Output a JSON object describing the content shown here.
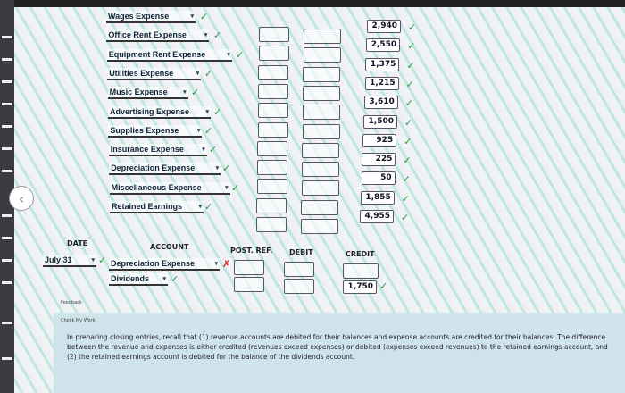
{
  "closing_entries": [
    {
      "account": "Wages Expense",
      "credit": "2,940"
    },
    {
      "account": "Office Rent Expense",
      "credit": "2,550"
    },
    {
      "account": "Equipment Rent Expense",
      "credit": "1,375"
    },
    {
      "account": "Utilities Expense",
      "credit": "1,215"
    },
    {
      "account": "Music Expense",
      "credit": "3,610"
    },
    {
      "account": "Advertising Expense",
      "credit": "1,500"
    },
    {
      "account": "Supplies Expense",
      "credit": "925"
    },
    {
      "account": "Insurance Expense",
      "credit": "225"
    },
    {
      "account": "Depreciation Expense",
      "credit": "50"
    },
    {
      "account": "Miscellaneous Expense",
      "credit": "1,855"
    },
    {
      "account": "Retained Earnings",
      "credit": "4,955"
    }
  ],
  "headers": {
    "date": "DATE",
    "account": "ACCOUNT",
    "post_ref": "POST. REF.",
    "debit": "DEBIT",
    "credit": "CREDIT"
  },
  "dividends_entry": {
    "date": "July 31",
    "debit_account": "Depreciation Expense",
    "credit_account": "Dividends",
    "credit": "1,750"
  },
  "icons": {
    "correct": "✓",
    "incorrect": "✗",
    "dropdown": "▾",
    "back": "‹"
  },
  "colors": {
    "correct": "#2a9a3a",
    "incorrect": "#dd2222"
  },
  "feedback": {
    "label": "Feedback",
    "check_label": "Check My Work",
    "text": "In preparing closing entries, recall that (1) revenue accounts are debited for their balances and expense accounts are credited for their balances. The difference between the revenue and expenses is either credited (revenues exceed expenses) or debited (expenses exceed revenues) to the retained earnings account, and (2) the retained earnings account is debited for the balance of the dividends account."
  }
}
